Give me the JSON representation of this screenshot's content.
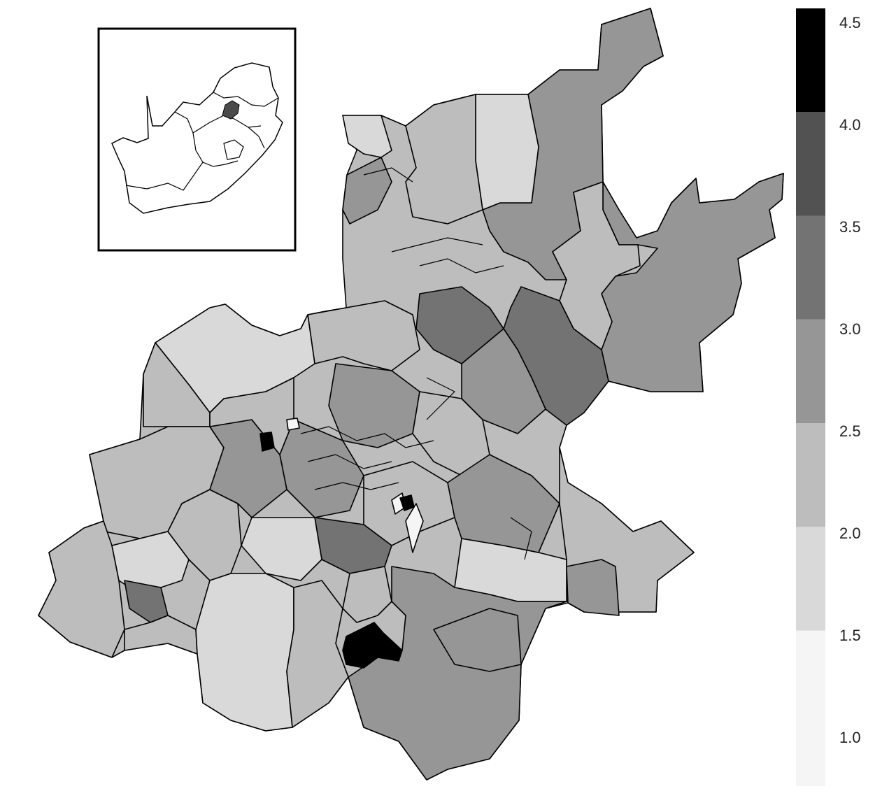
{
  "legend": {
    "ticks": [
      "4.5",
      "4.0",
      "3.5",
      "3.0",
      "2.5",
      "2.0",
      "1.5",
      "1.0"
    ],
    "bins": [
      {
        "range": [
          1.0,
          1.5
        ],
        "color": "#f5f5f5"
      },
      {
        "range": [
          1.5,
          2.0
        ],
        "color": "#d9d9d9"
      },
      {
        "range": [
          2.0,
          2.5
        ],
        "color": "#bdbdbd"
      },
      {
        "range": [
          2.5,
          3.0
        ],
        "color": "#969696"
      },
      {
        "range": [
          3.0,
          3.5
        ],
        "color": "#737373"
      },
      {
        "range": [
          3.5,
          4.0
        ],
        "color": "#525252"
      },
      {
        "range": [
          4.0,
          4.5
        ],
        "color": "#000000"
      }
    ]
  },
  "map": {
    "type": "choropleth",
    "region": "Gauteng province, South Africa",
    "inset": "South Africa locator map with Gauteng highlighted",
    "outline_color": "#000000"
  }
}
